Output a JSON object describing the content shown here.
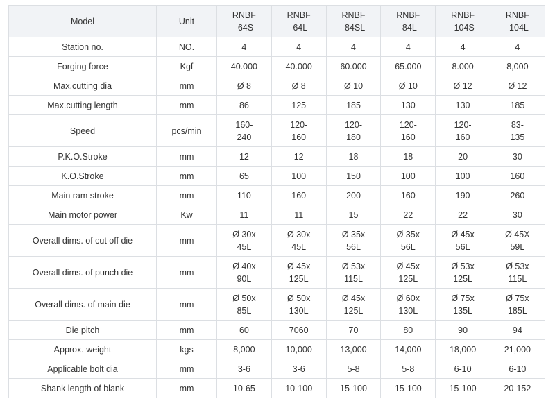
{
  "table": {
    "headers": {
      "model": "Model",
      "unit": "Unit",
      "models": [
        [
          "RNBF",
          "-64S"
        ],
        [
          "RNBF",
          "-64L"
        ],
        [
          "RNBF",
          "-84SL"
        ],
        [
          "RNBF",
          "-84L"
        ],
        [
          "RNBF",
          "-104S"
        ],
        [
          "RNBF",
          "-104L"
        ]
      ]
    },
    "rows": [
      {
        "label": "Station no.",
        "unit": "NO.",
        "values": [
          [
            "4"
          ],
          [
            "4"
          ],
          [
            "4"
          ],
          [
            "4"
          ],
          [
            "4"
          ],
          [
            "4"
          ]
        ]
      },
      {
        "label": "Forging force",
        "unit": "Kgf",
        "values": [
          [
            "40.000"
          ],
          [
            "40.000"
          ],
          [
            "60.000"
          ],
          [
            "65.000"
          ],
          [
            "8.000"
          ],
          [
            "8,000"
          ]
        ]
      },
      {
        "label": "Max.cutting dia",
        "unit": "mm",
        "values": [
          [
            "Ø 8"
          ],
          [
            "Ø 8"
          ],
          [
            "Ø 10"
          ],
          [
            "Ø 10"
          ],
          [
            "Ø 12"
          ],
          [
            "Ø 12"
          ]
        ]
      },
      {
        "label": "Max.cutting length",
        "unit": "mm",
        "values": [
          [
            "86"
          ],
          [
            "125"
          ],
          [
            "185"
          ],
          [
            "130"
          ],
          [
            "130"
          ],
          [
            "185"
          ]
        ]
      },
      {
        "label": "Speed",
        "unit": "pcs/min",
        "values": [
          [
            "160-",
            "240"
          ],
          [
            "120-",
            "160"
          ],
          [
            "120-",
            "180"
          ],
          [
            "120-",
            "160"
          ],
          [
            "120-",
            "160"
          ],
          [
            "83-",
            "135"
          ]
        ]
      },
      {
        "label": "P.K.O.Stroke",
        "unit": "mm",
        "values": [
          [
            "12"
          ],
          [
            "12"
          ],
          [
            "18"
          ],
          [
            "18"
          ],
          [
            "20"
          ],
          [
            "30"
          ]
        ]
      },
      {
        "label": "K.O.Stroke",
        "unit": "mm",
        "values": [
          [
            "65"
          ],
          [
            "100"
          ],
          [
            "150"
          ],
          [
            "100"
          ],
          [
            "100"
          ],
          [
            "160"
          ]
        ]
      },
      {
        "label": "Main ram stroke",
        "unit": "mm",
        "values": [
          [
            "110"
          ],
          [
            "160"
          ],
          [
            "200"
          ],
          [
            "160"
          ],
          [
            "190"
          ],
          [
            "260"
          ]
        ]
      },
      {
        "label": "Main motor power",
        "unit": "Kw",
        "values": [
          [
            "11"
          ],
          [
            "11"
          ],
          [
            "15"
          ],
          [
            "22"
          ],
          [
            "22"
          ],
          [
            "30"
          ]
        ]
      },
      {
        "label": "Overall dims. of cut off die",
        "unit": "mm",
        "values": [
          [
            "Ø 30x",
            "45L"
          ],
          [
            "Ø 30x",
            "45L"
          ],
          [
            "Ø 35x",
            "56L"
          ],
          [
            "Ø 35x",
            "56L"
          ],
          [
            "Ø 45x",
            "56L"
          ],
          [
            "Ø 45X",
            "59L"
          ]
        ]
      },
      {
        "label": "Overall dims. of punch die",
        "unit": "mm",
        "values": [
          [
            "Ø 40x",
            "90L"
          ],
          [
            "Ø 45x",
            "125L"
          ],
          [
            "Ø 53x",
            "115L"
          ],
          [
            "Ø 45x",
            "125L"
          ],
          [
            "Ø 53x",
            "125L"
          ],
          [
            "Ø 53x",
            "115L"
          ]
        ]
      },
      {
        "label": "Overall dims. of main die",
        "unit": "mm",
        "values": [
          [
            "Ø 50x",
            "85L"
          ],
          [
            "Ø 50x",
            "130L"
          ],
          [
            "Ø 45x",
            "125L"
          ],
          [
            "Ø 60x",
            "130L"
          ],
          [
            "Ø 75x",
            "135L"
          ],
          [
            "Ø 75x",
            "185L"
          ]
        ]
      },
      {
        "label": "Die pitch",
        "unit": "mm",
        "values": [
          [
            "60"
          ],
          [
            "7060"
          ],
          [
            "70"
          ],
          [
            "80"
          ],
          [
            "90"
          ],
          [
            "94"
          ]
        ]
      },
      {
        "label": "Approx. weight",
        "unit": "kgs",
        "values": [
          [
            "8,000"
          ],
          [
            "10,000"
          ],
          [
            "13,000"
          ],
          [
            "14,000"
          ],
          [
            "18,000"
          ],
          [
            "21,000"
          ]
        ]
      },
      {
        "label": "Applicable bolt dia",
        "unit": "mm",
        "values": [
          [
            "3-6"
          ],
          [
            "3-6"
          ],
          [
            "5-8"
          ],
          [
            "5-8"
          ],
          [
            "6-10"
          ],
          [
            "6-10"
          ]
        ]
      },
      {
        "label": "Shank length of blank",
        "unit": "mm",
        "values": [
          [
            "10-65"
          ],
          [
            "10-100"
          ],
          [
            "15-100"
          ],
          [
            "15-100"
          ],
          [
            "15-100"
          ],
          [
            "20-152"
          ]
        ]
      }
    ]
  }
}
